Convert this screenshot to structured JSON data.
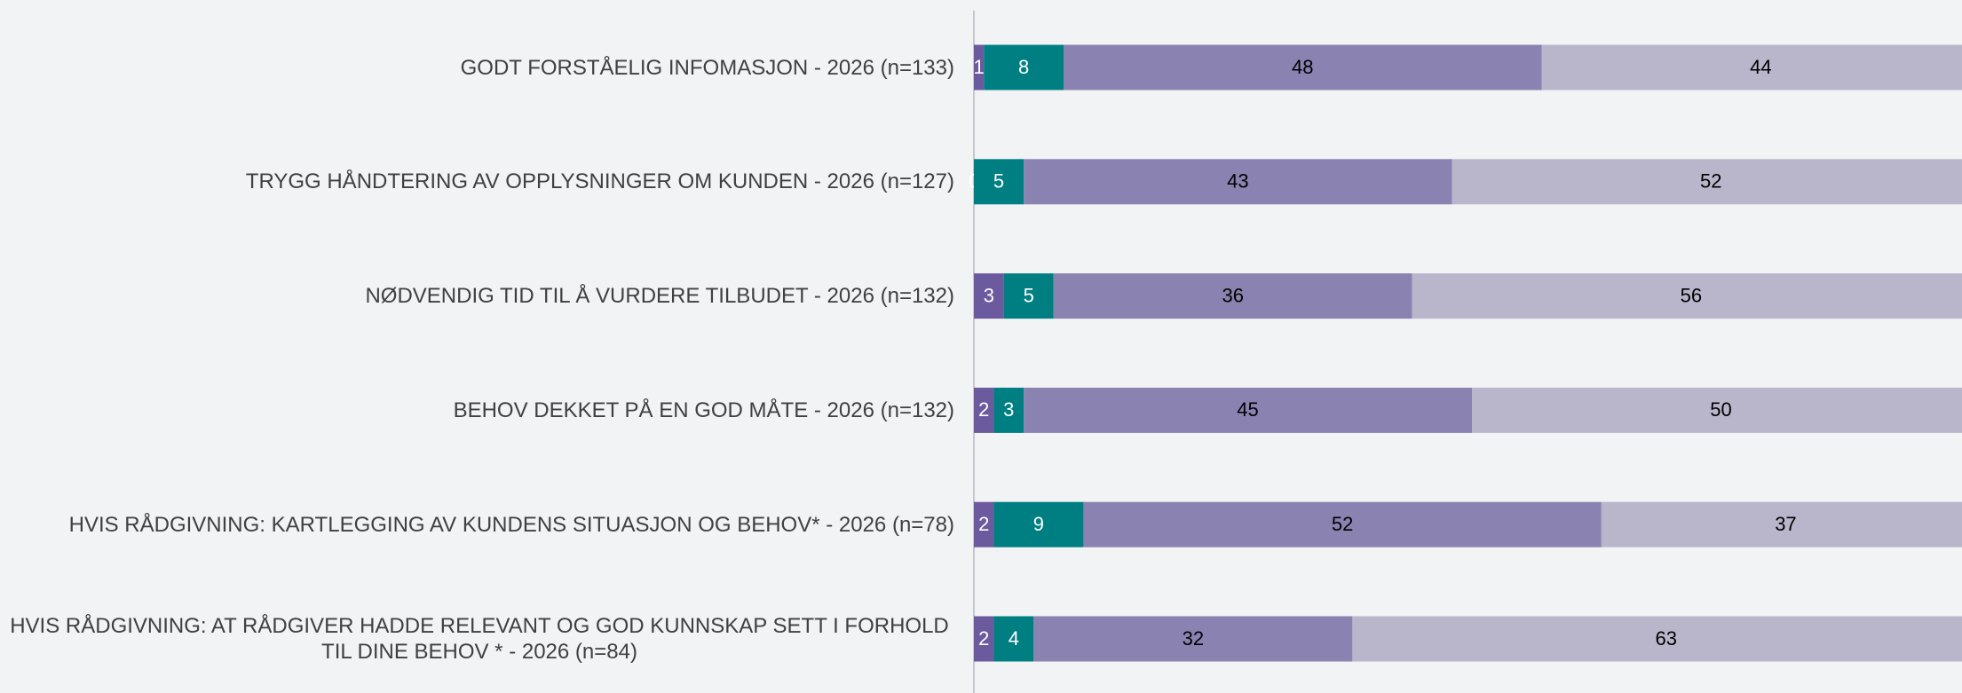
{
  "chart_data": {
    "type": "stacked-bar-horizontal",
    "categories": [
      "GODT FORSTÅELIG INFOMASJON - 2026 (n=133)",
      "TRYGG HÅNDTERING AV OPPLYSNINGER OM KUNDEN - 2026 (n=127)",
      "NØDVENDIG TID TIL Å VURDERE TILBUDET - 2026 (n=132)",
      "BEHOV DEKKET PÅ EN GOD MÅTE - 2026 (n=132)",
      "HVIS RÅDGIVNING: KARTLEGGING AV KUNDENS SITUASJON OG BEHOV* - 2026 (n=78)",
      "HVIS RÅDGIVNING: AT RÅDGIVER HADDE RELEVANT OG GOD KUNNSKAP SETT I FORHOLD TIL DINE BEHOV * - 2026 (n=84)"
    ],
    "series": [
      {
        "color": "#6b5a9e",
        "label_color": "#ffffff",
        "values": [
          1,
          0,
          3,
          2,
          2,
          2
        ]
      },
      {
        "color": "#007f82",
        "label_color": "#ffffff",
        "values": [
          8,
          5,
          5,
          3,
          9,
          4
        ]
      },
      {
        "color": "#8a82b0",
        "label_color": "#000000",
        "values": [
          48,
          43,
          36,
          45,
          52,
          32
        ]
      },
      {
        "color": "#b9b6cc",
        "label_color": "#000000",
        "values": [
          44,
          52,
          56,
          50,
          37,
          63
        ]
      }
    ]
  }
}
